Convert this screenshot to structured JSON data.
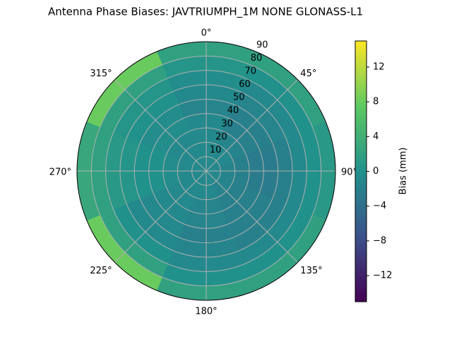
{
  "chart_data": {
    "type": "polar_contour",
    "title": "Antenna Phase Biases: JAVTRIUMPH_1M   NONE GLONASS-L1",
    "colorbar_label": "Bias (mm)",
    "colormap": "viridis",
    "clim": [
      -15,
      15
    ],
    "cticks": [
      {
        "value": -12,
        "label": "−12"
      },
      {
        "value": -8,
        "label": "−8"
      },
      {
        "value": -4,
        "label": "−4"
      },
      0,
      4,
      8,
      12
    ],
    "rlim": [
      0,
      90
    ],
    "rticks": [
      10,
      20,
      30,
      40,
      50,
      60,
      70,
      80,
      90
    ],
    "thetaticks": [
      {
        "value": 0,
        "label": "0°"
      },
      {
        "value": 45,
        "label": "45°"
      },
      {
        "value": 90,
        "label": "90°"
      },
      {
        "value": 135,
        "label": "135°"
      },
      {
        "value": 180,
        "label": "180°"
      },
      {
        "value": 225,
        "label": "225°"
      },
      {
        "value": 270,
        "label": "270°"
      },
      {
        "value": 315,
        "label": "315°"
      }
    ],
    "grid": true,
    "azimuth": [
      0,
      45,
      90,
      135,
      180,
      225,
      270,
      315
    ],
    "zenith": [
      5,
      15,
      25,
      35,
      45,
      55,
      65,
      75,
      85
    ],
    "z": [
      [
        -1,
        -1,
        -1,
        -1,
        -1,
        -1,
        -1,
        -1
      ],
      [
        -1,
        -1,
        -1.5,
        -1.5,
        -1,
        -1,
        -1,
        -1
      ],
      [
        -1,
        -1.5,
        -2,
        -2,
        -1.5,
        -1,
        -0.5,
        -1
      ],
      [
        -1,
        -2,
        -2.5,
        -2,
        -1.5,
        -1,
        0,
        -0.5
      ],
      [
        -1.5,
        -2,
        -2.5,
        -2,
        -2,
        -1,
        0,
        -0.5
      ],
      [
        -1,
        -1.5,
        -2,
        -2,
        -1.5,
        -1,
        0.5,
        0
      ],
      [
        -0.5,
        -1,
        -1,
        -1,
        -1,
        0,
        1,
        0.5
      ],
      [
        0.5,
        0,
        0,
        0,
        0,
        2,
        2,
        2
      ],
      [
        2,
        2,
        1,
        2,
        2,
        8,
        3,
        8
      ]
    ]
  }
}
